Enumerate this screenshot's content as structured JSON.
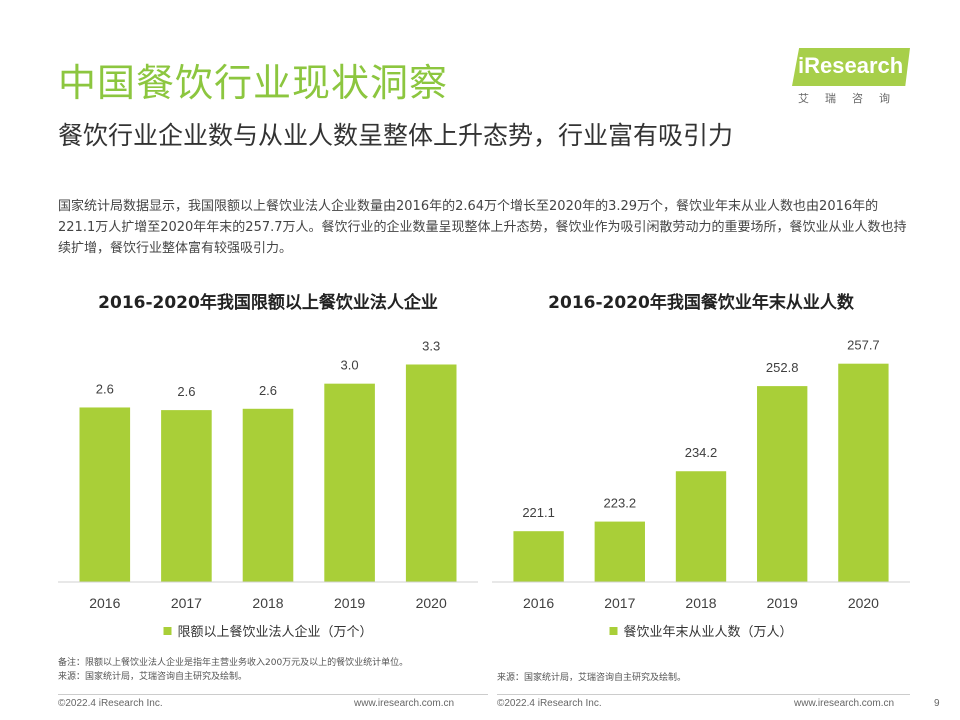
{
  "title": "中国餐饮行业现状洞察",
  "subtitle": "餐饮行业企业数与从业人数呈整体上升态势，行业富有吸引力",
  "description": "国家统计局数据显示，我国限额以上餐饮业法人企业数量由2016年的2.64万个增长至2020年的3.29万个，餐饮业年末从业人数也由2016年的221.1万人扩增至2020年年末的257.7万人。餐饮行业的企业数量呈现整体上升态势，餐饮业作为吸引闲散劳动力的重要场所，餐饮业从业人数也持续扩增，餐饮行业整体富有较强吸引力。",
  "logo": {
    "text": "iResearch",
    "sub": "艾瑞咨询"
  },
  "chart_data": [
    {
      "type": "bar",
      "title": "2016-2020年我国限额以上餐饮业法人企业",
      "categories": [
        "2016",
        "2017",
        "2018",
        "2019",
        "2020"
      ],
      "series": [
        {
          "name": "限额以上餐饮业法人企业（万个）",
          "values": [
            2.64,
            2.6,
            2.62,
            3.0,
            3.29
          ],
          "labels": [
            "2.6",
            "2.6",
            "2.6",
            "3.0",
            "3.3"
          ]
        }
      ],
      "color": "#a9cf38",
      "ylim": [
        0,
        3.6
      ],
      "legend": "bottom",
      "grid": false
    },
    {
      "type": "bar",
      "title": "2016-2020年我国餐饮业年末从业人数",
      "categories": [
        "2016",
        "2017",
        "2018",
        "2019",
        "2020"
      ],
      "series": [
        {
          "name": "餐饮业年末从业人数（万人）",
          "values": [
            221.1,
            223.2,
            234.2,
            252.8,
            257.7
          ],
          "labels": [
            "221.1",
            "223.2",
            "234.2",
            "252.8",
            "257.7"
          ]
        }
      ],
      "color": "#a9cf38",
      "ylim": [
        210,
        262
      ],
      "legend": "bottom",
      "grid": false
    }
  ],
  "note": "备注：限额以上餐饮业法人企业是指年主营业务收入200万元及以上的餐饮业统计单位。",
  "source_left": "来源：国家统计局，艾瑞咨询自主研究及绘制。",
  "source_right": "来源：国家统计局，艾瑞咨询自主研究及绘制。",
  "footer": {
    "copyright_left": "©2022.4 iResearch Inc.",
    "url_left": "www.iresearch.com.cn",
    "copyright_right": "©2022.4 iResearch Inc.",
    "url_right": "www.iresearch.com.cn",
    "page_number": "9"
  }
}
